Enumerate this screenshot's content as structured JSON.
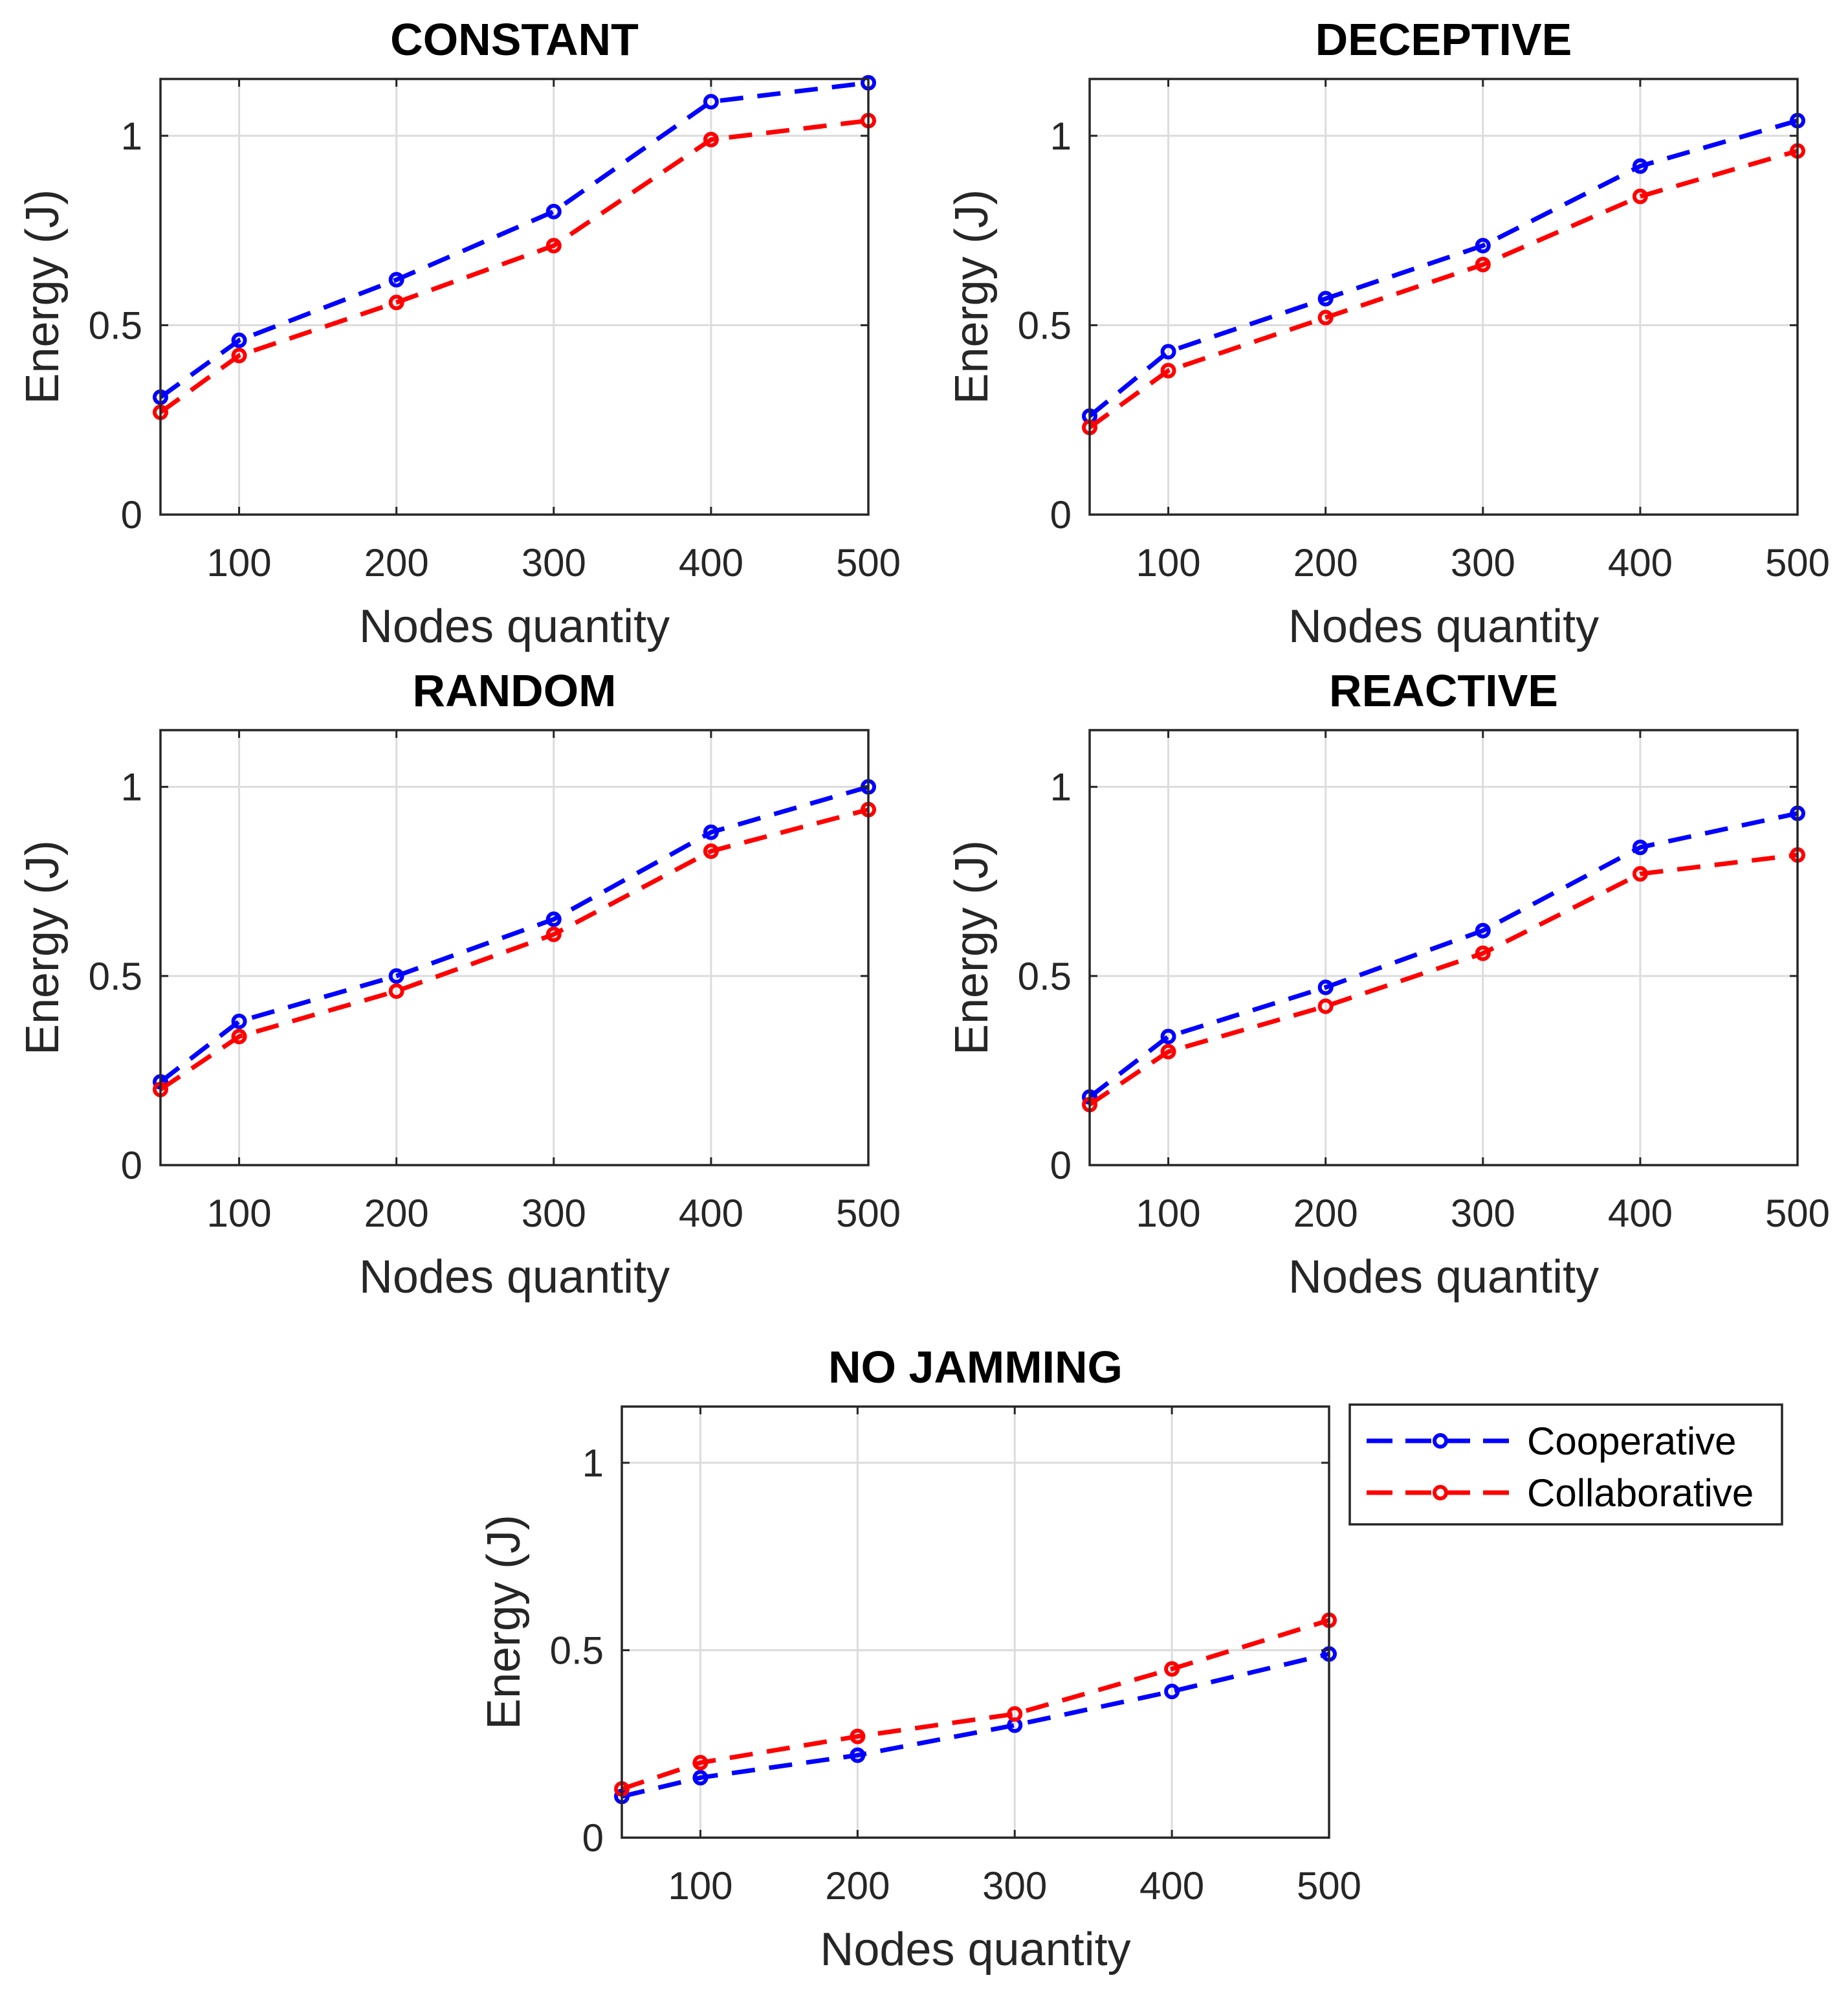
{
  "chart_data": [
    {
      "type": "line",
      "title": "CONSTANT",
      "xlabel": "Nodes quantity",
      "ylabel": "Energy (J)",
      "xlim": [
        50,
        500
      ],
      "ylim": [
        0,
        1.15
      ],
      "xticks": [
        100,
        200,
        300,
        400,
        500
      ],
      "yticks": [
        0,
        0.5,
        1
      ],
      "grid": true,
      "x": [
        50,
        100,
        200,
        300,
        400,
        500
      ],
      "series": [
        {
          "name": "Cooperative",
          "color": "#0000ff",
          "values": [
            0.31,
            0.46,
            0.62,
            0.8,
            1.09,
            1.14
          ]
        },
        {
          "name": "Collaborative",
          "color": "#ff0000",
          "values": [
            0.27,
            0.42,
            0.56,
            0.71,
            0.99,
            1.04
          ]
        }
      ]
    },
    {
      "type": "line",
      "title": "DECEPTIVE",
      "xlabel": "Nodes quantity",
      "ylabel": "Energy (J)",
      "xlim": [
        50,
        500
      ],
      "ylim": [
        0,
        1.15
      ],
      "xticks": [
        100,
        200,
        300,
        400,
        500
      ],
      "yticks": [
        0,
        0.5,
        1
      ],
      "grid": true,
      "x": [
        50,
        100,
        200,
        300,
        400,
        500
      ],
      "series": [
        {
          "name": "Cooperative",
          "color": "#0000ff",
          "values": [
            0.26,
            0.43,
            0.57,
            0.71,
            0.92,
            1.04
          ]
        },
        {
          "name": "Collaborative",
          "color": "#ff0000",
          "values": [
            0.23,
            0.38,
            0.52,
            0.66,
            0.84,
            0.96
          ]
        }
      ]
    },
    {
      "type": "line",
      "title": "RANDOM",
      "xlabel": "Nodes quantity",
      "ylabel": "Energy (J)",
      "xlim": [
        50,
        500
      ],
      "ylim": [
        0,
        1.15
      ],
      "xticks": [
        100,
        200,
        300,
        400,
        500
      ],
      "yticks": [
        0,
        0.5,
        1
      ],
      "grid": true,
      "x": [
        50,
        100,
        200,
        300,
        400,
        500
      ],
      "series": [
        {
          "name": "Cooperative",
          "color": "#0000ff",
          "values": [
            0.22,
            0.38,
            0.5,
            0.65,
            0.88,
            1.0
          ]
        },
        {
          "name": "Collaborative",
          "color": "#ff0000",
          "values": [
            0.2,
            0.34,
            0.46,
            0.61,
            0.83,
            0.94
          ]
        }
      ]
    },
    {
      "type": "line",
      "title": "REACTIVE",
      "xlabel": "Nodes quantity",
      "ylabel": "Energy (J)",
      "xlim": [
        50,
        500
      ],
      "ylim": [
        0,
        1.15
      ],
      "xticks": [
        100,
        200,
        300,
        400,
        500
      ],
      "yticks": [
        0,
        0.5,
        1
      ],
      "grid": true,
      "x": [
        50,
        100,
        200,
        300,
        400,
        500
      ],
      "series": [
        {
          "name": "Cooperative",
          "color": "#0000ff",
          "values": [
            0.18,
            0.34,
            0.47,
            0.62,
            0.84,
            0.93
          ]
        },
        {
          "name": "Collaborative",
          "color": "#ff0000",
          "values": [
            0.16,
            0.3,
            0.42,
            0.56,
            0.77,
            0.82
          ]
        }
      ]
    },
    {
      "type": "line",
      "title": "NO JAMMING",
      "xlabel": "Nodes quantity",
      "ylabel": "Energy (J)",
      "xlim": [
        50,
        500
      ],
      "ylim": [
        0,
        1.15
      ],
      "xticks": [
        100,
        200,
        300,
        400,
        500
      ],
      "yticks": [
        0,
        0.5,
        1
      ],
      "grid": true,
      "legend": "outside-right",
      "x": [
        50,
        100,
        200,
        300,
        400,
        500
      ],
      "series": [
        {
          "name": "Cooperative",
          "color": "#0000ff",
          "values": [
            0.11,
            0.16,
            0.22,
            0.3,
            0.39,
            0.49
          ]
        },
        {
          "name": "Collaborative",
          "color": "#ff0000",
          "values": [
            0.13,
            0.2,
            0.27,
            0.33,
            0.45,
            0.58
          ]
        }
      ]
    }
  ],
  "legend": {
    "items": [
      {
        "label": "Cooperative",
        "color": "#0000ff"
      },
      {
        "label": "Collaborative",
        "color": "#ff0000"
      }
    ]
  }
}
